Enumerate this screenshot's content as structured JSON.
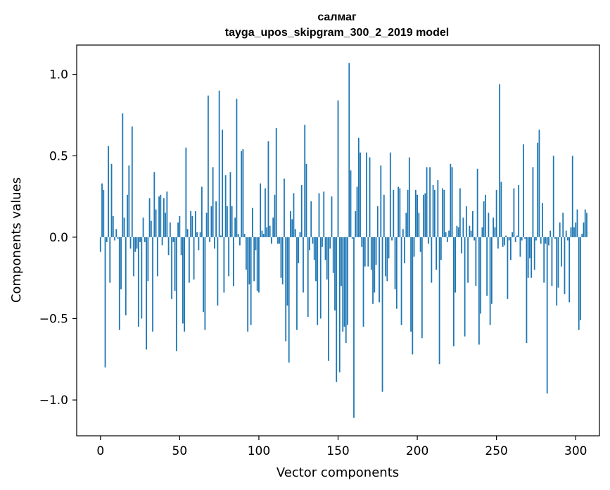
{
  "chart_data": {
    "type": "bar",
    "title": "салмаг",
    "subtitle": "tayga_upos_skipgram_300_2_2019 model",
    "xlabel": "Vector components",
    "ylabel": "Components values",
    "xlim": [
      -15,
      315
    ],
    "ylim": [
      -1.22,
      1.18
    ],
    "xticks": [
      0,
      50,
      100,
      150,
      200,
      250,
      300
    ],
    "xtick_labels": [
      "0",
      "50",
      "100",
      "150",
      "200",
      "250",
      "300"
    ],
    "yticks": [
      -1.0,
      -0.5,
      0.0,
      0.5,
      1.0
    ],
    "ytick_labels": [
      "−1.0",
      "−0.5",
      "0.0",
      "0.5",
      "1.0"
    ],
    "bar_color": "#1f77b4",
    "grid": false,
    "series": [
      {
        "name": "салмаг",
        "values": [
          -0.09,
          0.33,
          0.29,
          -0.8,
          -0.03,
          0.56,
          -0.28,
          0.45,
          0.13,
          -0.02,
          0.05,
          -0.01,
          -0.57,
          -0.32,
          0.76,
          0.12,
          -0.48,
          0.26,
          0.44,
          -0.07,
          0.68,
          -0.24,
          -0.09,
          -0.07,
          -0.55,
          -0.03,
          -0.5,
          0.12,
          -0.03,
          -0.69,
          -0.27,
          0.24,
          0.1,
          -0.58,
          0.4,
          0.17,
          -0.24,
          0.25,
          0.26,
          -0.05,
          0.24,
          0.15,
          0.28,
          -0.11,
          0.09,
          -0.38,
          -0.03,
          -0.33,
          -0.7,
          0.09,
          0.13,
          -0.11,
          -0.53,
          -0.58,
          0.55,
          0.05,
          -0.28,
          0.16,
          0.13,
          -0.26,
          0.16,
          0.03,
          -0.08,
          0.03,
          0.31,
          -0.46,
          -0.57,
          0.15,
          0.87,
          -0.03,
          0.19,
          0.43,
          -0.07,
          0.22,
          -0.42,
          0.9,
          0.01,
          0.66,
          -0.34,
          0.38,
          0.19,
          -0.24,
          0.4,
          0.19,
          -0.3,
          0.12,
          0.85,
          0.02,
          -0.05,
          0.53,
          0.54,
          0.02,
          -0.2,
          -0.58,
          -0.29,
          -0.54,
          0.18,
          -0.27,
          -0.08,
          -0.33,
          -0.34,
          0.33,
          0.04,
          0.02,
          0.3,
          0.06,
          0.59,
          0.07,
          -0.04,
          0.12,
          0.26,
          0.67,
          -0.04,
          -0.04,
          -0.25,
          -0.29,
          0.36,
          -0.64,
          -0.42,
          -0.77,
          0.16,
          0.11,
          0.27,
          0.05,
          -0.57,
          -0.16,
          0.03,
          0.32,
          -0.34,
          0.69,
          0.45,
          -0.49,
          -0.08,
          0.22,
          -0.04,
          -0.14,
          -0.27,
          -0.54,
          0.27,
          -0.5,
          -0.06,
          0.28,
          -0.14,
          -0.26,
          -0.76,
          -0.07,
          0.25,
          -0.22,
          -0.45,
          -0.89,
          0.84,
          -0.83,
          -0.3,
          -0.58,
          -0.55,
          -0.65,
          -0.54,
          1.07,
          0.41,
          -0.01,
          -1.11,
          0.16,
          0.31,
          0.61,
          0.52,
          -0.06,
          -0.55,
          -0.18,
          0.52,
          -0.18,
          0.49,
          -0.2,
          -0.41,
          -0.34,
          -0.17,
          0.19,
          -0.4,
          0.44,
          -0.95,
          0.26,
          -0.24,
          -0.27,
          -0.13,
          0.52,
          -0.02,
          0.29,
          -0.32,
          -0.44,
          0.31,
          0.3,
          -0.54,
          0.05,
          -0.16,
          0.15,
          0.29,
          0.49,
          -0.58,
          -0.72,
          -0.12,
          0.29,
          0.26,
          0.15,
          -0.09,
          -0.62,
          0.26,
          0.27,
          0.43,
          -0.04,
          0.43,
          -0.28,
          0.32,
          0.29,
          -0.2,
          0.35,
          -0.78,
          -0.14,
          0.3,
          0.29,
          0.03,
          -0.03,
          0.04,
          0.45,
          0.43,
          -0.67,
          -0.34,
          0.07,
          0.06,
          0.3,
          -0.1,
          0.12,
          -0.61,
          0.19,
          -0.28,
          0.07,
          0.04,
          0.16,
          -0.02,
          -0.3,
          0.42,
          -0.66,
          -0.47,
          0.06,
          0.22,
          0.26,
          -0.36,
          0.15,
          -0.54,
          -0.41,
          0.12,
          0.06,
          0.29,
          -0.07,
          0.94,
          0.34,
          -0.06,
          -0.05,
          0.01,
          -0.38,
          -0.02,
          -0.14,
          0.03,
          0.3,
          -0.03,
          0.01,
          0.32,
          -0.12,
          -0.02,
          0.57,
          -0.01,
          -0.65,
          -0.25,
          -0.13,
          -0.25,
          0.43,
          -0.2,
          -0.02,
          0.58,
          0.66,
          -0.04,
          0.21,
          -0.28,
          -0.04,
          -0.96,
          -0.05,
          0.04,
          -0.3,
          0.5,
          -0.01,
          -0.42,
          -0.31,
          0.09,
          -0.18,
          0.15,
          -0.35,
          0.04,
          -0.02,
          -0.4,
          0.06,
          0.5,
          0.06,
          0.09,
          0.17,
          -0.57,
          -0.51,
          0.02,
          0.09,
          0.17,
          0.15
        ]
      }
    ]
  }
}
